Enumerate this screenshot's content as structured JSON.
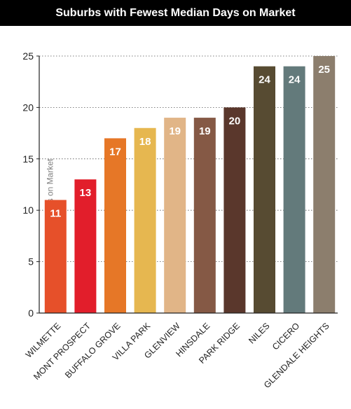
{
  "chart_data": {
    "type": "bar",
    "title": "Suburbs with Fewest Median Days on Market",
    "xlabel": "",
    "ylabel": "Median Days on Market",
    "ylim": [
      0,
      25
    ],
    "yticks": [
      0,
      5,
      10,
      15,
      20,
      25
    ],
    "grid": "dotted horizontal",
    "categories": [
      "WILMETTE",
      "MONT PROSPECT",
      "BUFFALO GROVE",
      "VILLA PARK",
      "GLENVIEW",
      "HINSDALE",
      "PARK RIDGE",
      "NILES",
      "CICERO",
      "GLENDALE HEIGHTS"
    ],
    "values": [
      11,
      13,
      17,
      18,
      19,
      19,
      20,
      24,
      24,
      25
    ],
    "colors": [
      "#E6502A",
      "#E21E2B",
      "#E67727",
      "#E6B750",
      "#E1B587",
      "#855945",
      "#5A372C",
      "#574B32",
      "#637A7B",
      "#8C7E6D"
    ]
  }
}
